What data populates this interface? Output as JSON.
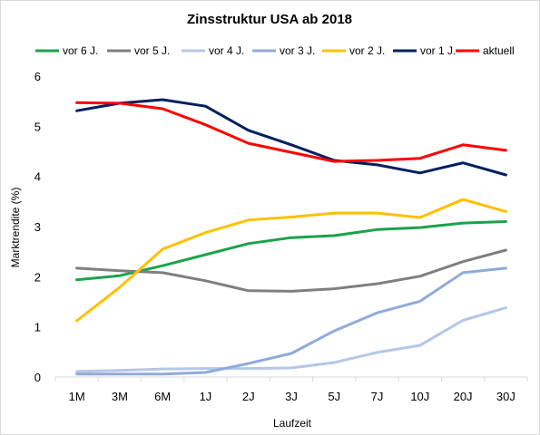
{
  "chart_data": {
    "type": "line",
    "title": "Zinsstruktur USA ab 2018",
    "xlabel": "Laufzeit",
    "ylabel": "Marktrendite  (%)",
    "categories": [
      "1M",
      "3M",
      "6M",
      "1J",
      "2J",
      "3J",
      "5J",
      "7J",
      "10J",
      "20J",
      "30J"
    ],
    "ylim": [
      0,
      6
    ],
    "yticks": [
      "0",
      "1",
      "2",
      "3",
      "4",
      "5",
      "6"
    ],
    "grid": false,
    "legend_position": "top",
    "series": [
      {
        "name": "vor 6 J.",
        "color": "#1aa34a",
        "values": [
          1.94,
          2.02,
          2.22,
          2.44,
          2.66,
          2.78,
          2.82,
          2.94,
          2.98,
          3.07,
          3.1
        ]
      },
      {
        "name": "vor 5 J.",
        "color": "#7f7f7f",
        "values": [
          2.17,
          2.12,
          2.08,
          1.92,
          1.72,
          1.71,
          1.76,
          1.86,
          2.01,
          2.3,
          2.53
        ]
      },
      {
        "name": "vor 4 J.",
        "color": "#b4c7e7",
        "values": [
          0.11,
          0.13,
          0.16,
          0.17,
          0.17,
          0.18,
          0.29,
          0.49,
          0.63,
          1.13,
          1.38
        ]
      },
      {
        "name": "vor 3 J.",
        "color": "#8faadc",
        "values": [
          0.06,
          0.06,
          0.06,
          0.09,
          0.27,
          0.47,
          0.92,
          1.28,
          1.51,
          2.08,
          2.17
        ]
      },
      {
        "name": "vor 2 J.",
        "color": "#ffc000",
        "values": [
          1.12,
          1.79,
          2.55,
          2.88,
          3.13,
          3.19,
          3.27,
          3.27,
          3.18,
          3.54,
          3.3
        ]
      },
      {
        "name": "vor 1 J.",
        "color": "#002060",
        "values": [
          5.31,
          5.46,
          5.53,
          5.4,
          4.92,
          4.63,
          4.32,
          4.23,
          4.07,
          4.27,
          4.03
        ]
      },
      {
        "name": "aktuell",
        "color": "#ff0000",
        "values": [
          5.47,
          5.46,
          5.35,
          5.03,
          4.66,
          4.48,
          4.3,
          4.32,
          4.36,
          4.63,
          4.52
        ]
      }
    ]
  }
}
